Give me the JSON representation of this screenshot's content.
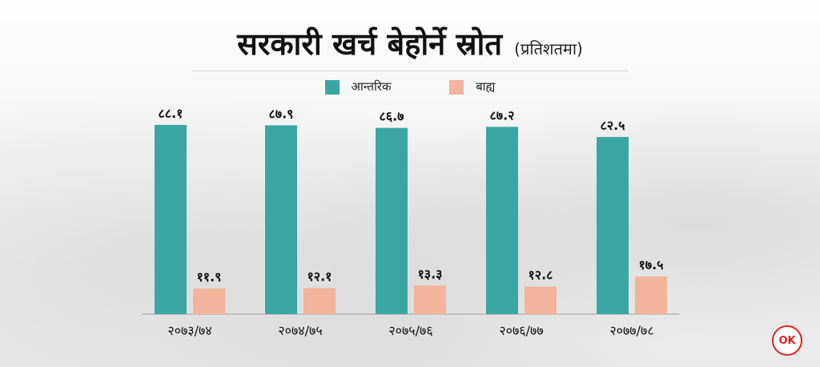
{
  "colors": {
    "internal": "#3aa6a3",
    "external": "#f2b49a",
    "axis": "#b5b5b5"
  },
  "logo_text": "OK",
  "chart_data": {
    "type": "bar",
    "title": "सरकारी खर्च बेहोर्ने स्रोत",
    "subtitle": "(प्रतिशतमा)",
    "legend_placement": "top",
    "grid": false,
    "ylim": [
      0,
      100
    ],
    "categories": [
      "२०७३/७४",
      "२०७४/७५",
      "२०७५/७६",
      "२०७६/७७",
      "२०७७/७८"
    ],
    "series": [
      {
        "name": "आन्तरिक",
        "values": [
          88.1,
          87.9,
          86.7,
          87.2,
          82.5
        ],
        "labels": [
          "८८.१",
          "८७.९",
          "८६.७",
          "८७.२",
          "८२.५"
        ]
      },
      {
        "name": "बाह्य",
        "values": [
          11.9,
          12.1,
          13.3,
          12.8,
          17.5
        ],
        "labels": [
          "११.९",
          "१२.१",
          "१३.३",
          "१२.८",
          "१७.५"
        ]
      }
    ]
  }
}
